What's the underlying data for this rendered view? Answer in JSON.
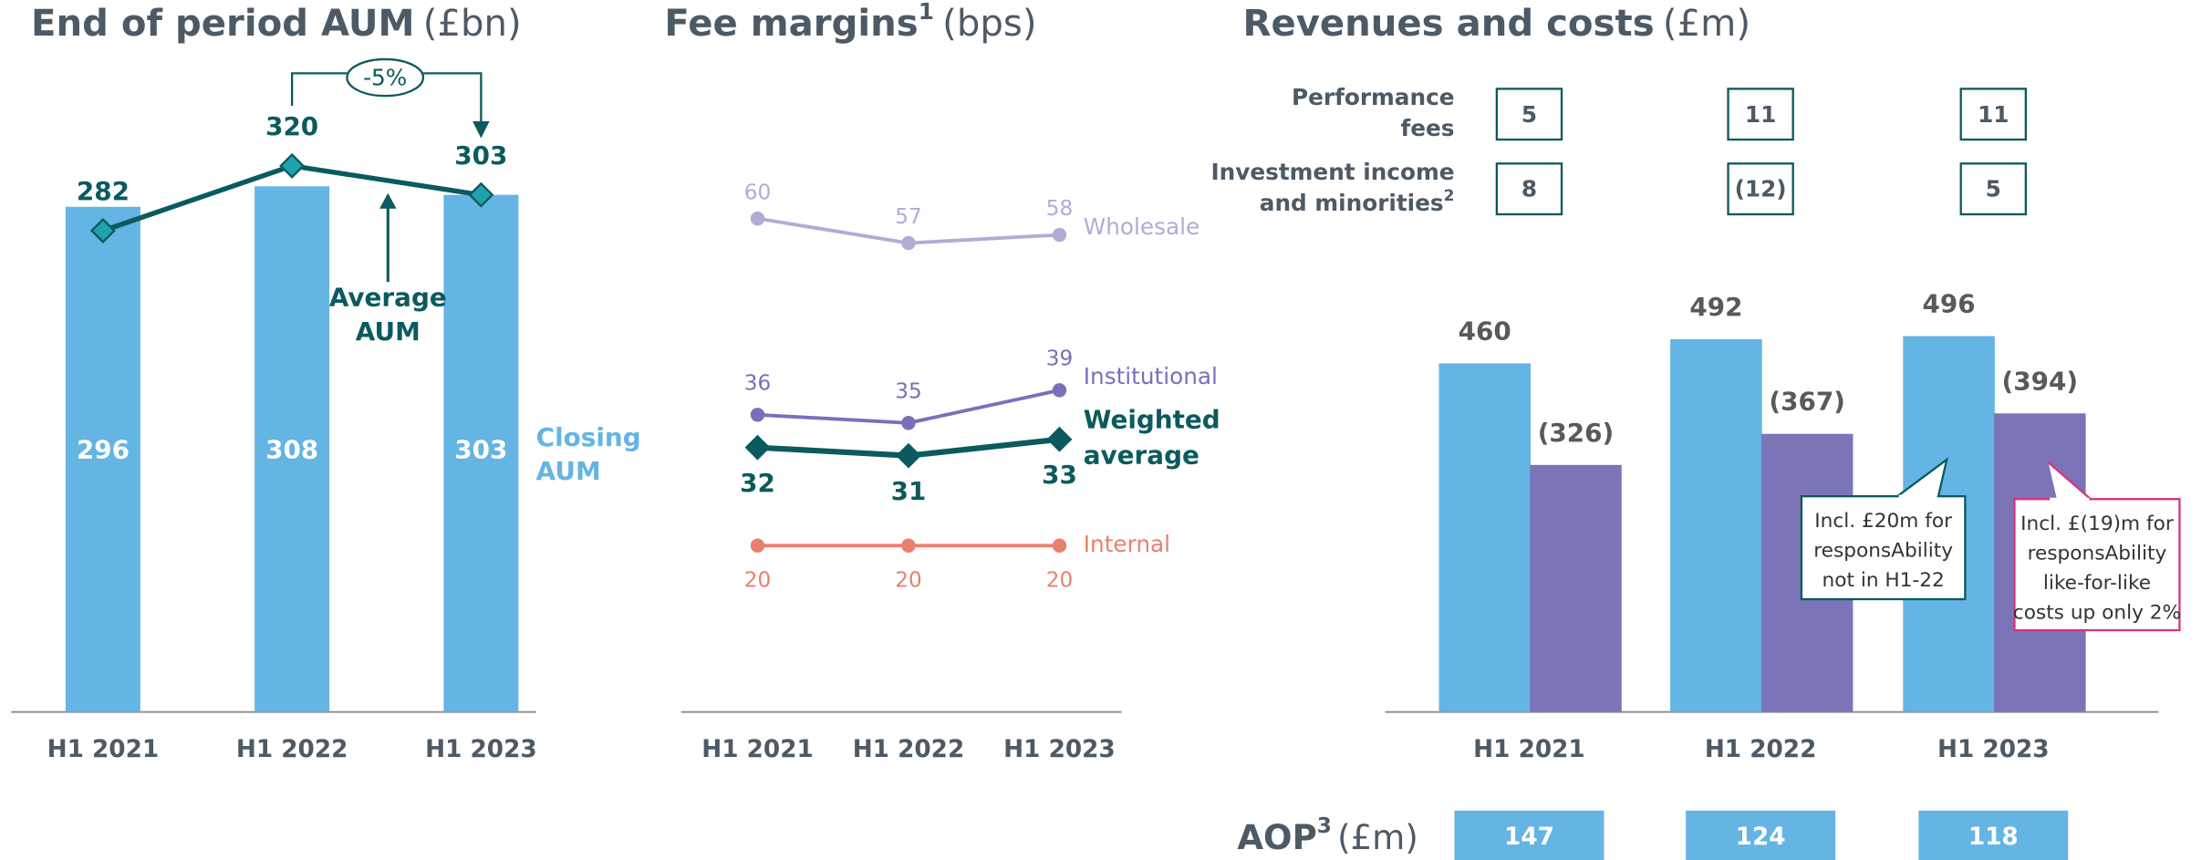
{
  "chart_data": [
    {
      "type": "combo",
      "title": "End of period AUM",
      "title_unit": "(£bn)",
      "categories": [
        "H1 2021",
        "H1 2022",
        "H1 2023"
      ],
      "series": [
        {
          "name": "Closing AUM",
          "kind": "bar",
          "color": "#64b4e4",
          "values": [
            296,
            308,
            303
          ]
        },
        {
          "name": "Average AUM",
          "kind": "line",
          "color": "#0b5a5e",
          "marker_color": "#1fa3ab",
          "values": [
            282,
            320,
            303
          ]
        }
      ],
      "ylim": [
        0,
        380
      ],
      "annotation": "-5%"
    },
    {
      "type": "line",
      "title": "Fee margins",
      "title_sup": "1",
      "title_unit": "(bps)",
      "categories": [
        "H1 2021",
        "H1 2022",
        "H1 2023"
      ],
      "series": [
        {
          "name": "Wholesale",
          "color": "#b3abd6",
          "values": [
            60,
            57,
            58
          ]
        },
        {
          "name": "Institutional",
          "color": "#7b6fba",
          "values": [
            36,
            35,
            39
          ]
        },
        {
          "name": "Weighted average",
          "color": "#0b5a5e",
          "values": [
            32,
            31,
            33
          ]
        },
        {
          "name": "Internal",
          "color": "#e8806e",
          "values": [
            20,
            20,
            20
          ]
        }
      ],
      "ylim": [
        0,
        70
      ]
    },
    {
      "type": "bar",
      "title": "Revenues and costs",
      "title_unit": "(£m)",
      "categories": [
        "H1 2021",
        "H1 2022",
        "H1 2023"
      ],
      "series": [
        {
          "color": "#64b4e4",
          "values": [
            460,
            492,
            496
          ]
        },
        {
          "color": "#7b75b8",
          "values": [
            326,
            367,
            394
          ],
          "value_labels": [
            "(326)",
            "(367)",
            "(394)"
          ]
        }
      ],
      "ylim": [
        0,
        560
      ],
      "table": [
        {
          "label_lines": [
            "Performance",
            "fees"
          ],
          "values": [
            5,
            11,
            11
          ]
        },
        {
          "label_lines": [
            "Investment income",
            "and minorities"
          ],
          "label_sup": "2",
          "values": [
            8,
            -12,
            5
          ],
          "value_labels": [
            "8",
            "(12)",
            "5"
          ]
        }
      ],
      "callouts": [
        [
          "Incl. £20m for",
          "responsAbility",
          "not in H1-22"
        ],
        [
          "Incl. £(19)m for",
          "responsAbility",
          "like-for-like",
          "costs up only 2%"
        ]
      ],
      "aop": {
        "label": "AOP",
        "sup": "3",
        "unit": "(£m)",
        "values": [
          147,
          124,
          118
        ]
      }
    }
  ]
}
